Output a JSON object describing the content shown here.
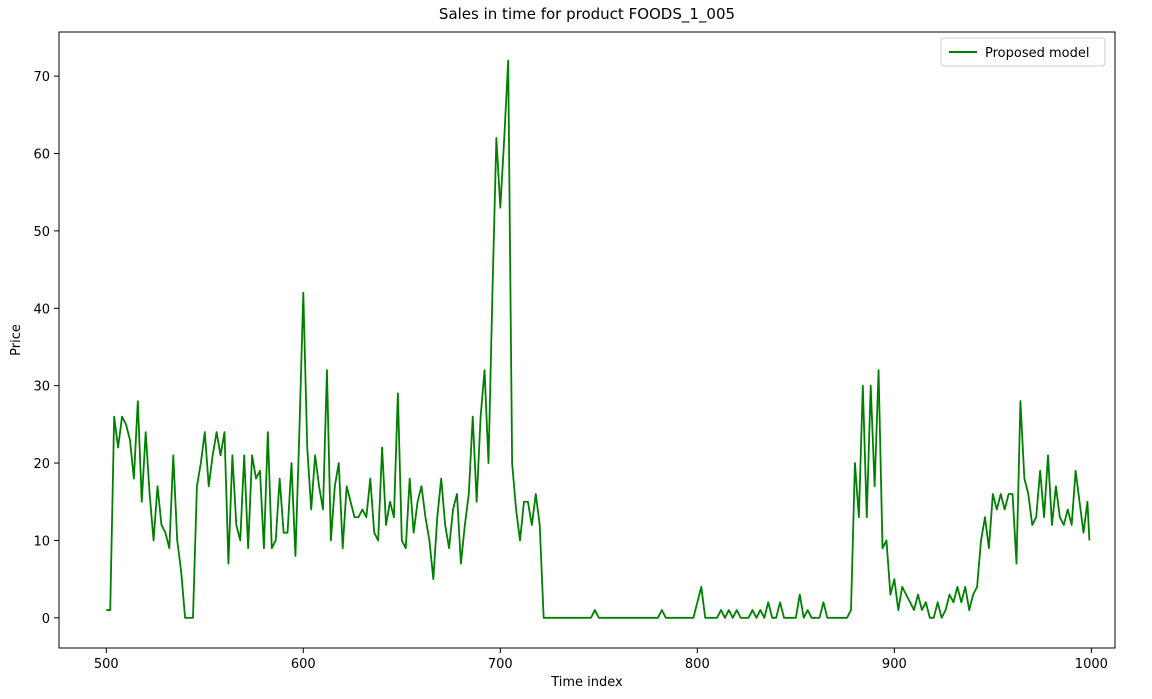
{
  "chart_data": {
    "type": "line",
    "title": "Sales in time for product FOODS_1_005",
    "x_label": "Time index",
    "y_label": "Price",
    "x": [
      500,
      502,
      504,
      506,
      508,
      510,
      512,
      514,
      516,
      518,
      520,
      522,
      524,
      526,
      528,
      530,
      532,
      534,
      536,
      538,
      540,
      542,
      544,
      546,
      548,
      550,
      552,
      554,
      556,
      558,
      560,
      562,
      564,
      566,
      568,
      570,
      572,
      574,
      576,
      578,
      580,
      582,
      584,
      586,
      588,
      590,
      592,
      594,
      596,
      598,
      600,
      602,
      604,
      606,
      608,
      610,
      612,
      614,
      616,
      618,
      620,
      622,
      624,
      626,
      628,
      630,
      632,
      634,
      636,
      638,
      640,
      642,
      644,
      646,
      648,
      650,
      652,
      654,
      656,
      658,
      660,
      662,
      664,
      666,
      668,
      670,
      672,
      674,
      676,
      678,
      680,
      682,
      684,
      686,
      688,
      690,
      692,
      694,
      696,
      698,
      700,
      702,
      704,
      706,
      708,
      710,
      712,
      714,
      716,
      718,
      720,
      722,
      724,
      726,
      728,
      730,
      732,
      734,
      736,
      738,
      740,
      742,
      744,
      746,
      748,
      750,
      752,
      754,
      756,
      758,
      760,
      762,
      764,
      766,
      768,
      770,
      772,
      774,
      776,
      778,
      780,
      782,
      784,
      786,
      788,
      790,
      792,
      794,
      796,
      798,
      800,
      802,
      804,
      806,
      808,
      810,
      812,
      814,
      816,
      818,
      820,
      822,
      824,
      826,
      828,
      830,
      832,
      834,
      836,
      838,
      840,
      842,
      844,
      846,
      848,
      850,
      852,
      854,
      856,
      858,
      860,
      862,
      864,
      866,
      868,
      870,
      872,
      874,
      876,
      878,
      880,
      882,
      884,
      886,
      888,
      890,
      892,
      894,
      896,
      898,
      900,
      902,
      904,
      906,
      908,
      910,
      912,
      914,
      916,
      918,
      920,
      922,
      924,
      926,
      928,
      930,
      932,
      934,
      936,
      938,
      940,
      942,
      944,
      946,
      948,
      950,
      952,
      954,
      956,
      958,
      960,
      962,
      964,
      966,
      968,
      970,
      972,
      974,
      976,
      978,
      980,
      982,
      984,
      986,
      988,
      990,
      992,
      994,
      996,
      998,
      999
    ],
    "series": [
      {
        "name": "Proposed model",
        "color": "#008000",
        "values": [
          1,
          1,
          26,
          22,
          26,
          25,
          23,
          18,
          28,
          15,
          24,
          16,
          10,
          17,
          12,
          11,
          9,
          21,
          10,
          6,
          0,
          0,
          0,
          17,
          20,
          24,
          17,
          21,
          24,
          21,
          24,
          7,
          21,
          12,
          10,
          21,
          9,
          21,
          18,
          19,
          9,
          24,
          9,
          10,
          18,
          11,
          11,
          20,
          8,
          24,
          42,
          22,
          14,
          21,
          17,
          14,
          32,
          10,
          17,
          20,
          9,
          17,
          15,
          13,
          13,
          14,
          13,
          18,
          11,
          10,
          22,
          12,
          15,
          13,
          29,
          10,
          9,
          18,
          11,
          15,
          17,
          13,
          10,
          5,
          13,
          18,
          12,
          9,
          14,
          16,
          7,
          12,
          16,
          26,
          15,
          26,
          32,
          20,
          42,
          62,
          53,
          62,
          72,
          20,
          14,
          10,
          15,
          15,
          12,
          16,
          12,
          0,
          0,
          0,
          0,
          0,
          0,
          0,
          0,
          0,
          0,
          0,
          0,
          0,
          1,
          0,
          0,
          0,
          0,
          0,
          0,
          0,
          0,
          0,
          0,
          0,
          0,
          0,
          0,
          0,
          0,
          1,
          0,
          0,
          0,
          0,
          0,
          0,
          0,
          0,
          2,
          4,
          0,
          0,
          0,
          0,
          1,
          0,
          1,
          0,
          1,
          0,
          0,
          0,
          1,
          0,
          1,
          0,
          2,
          0,
          0,
          2,
          0,
          0,
          0,
          0,
          3,
          0,
          1,
          0,
          0,
          0,
          2,
          0,
          0,
          0,
          0,
          0,
          0,
          1,
          20,
          13,
          30,
          13,
          30,
          17,
          32,
          9,
          10,
          3,
          5,
          1,
          4,
          3,
          2,
          1,
          3,
          1,
          2,
          0,
          0,
          2,
          0,
          1,
          3,
          2,
          4,
          2,
          4,
          1,
          3,
          4,
          10,
          13,
          9,
          16,
          14,
          16,
          14,
          16,
          16,
          7,
          28,
          18,
          16,
          12,
          13,
          19,
          13,
          21,
          12,
          17,
          13,
          12,
          14,
          12,
          19,
          15,
          11,
          15,
          10
        ]
      }
    ],
    "xlim": [
      476,
      1012
    ],
    "ylim": [
      -3.9,
      75.7
    ],
    "xticks": [
      500,
      600,
      700,
      800,
      900,
      1000
    ],
    "yticks": [
      0,
      10,
      20,
      30,
      40,
      50,
      60,
      70
    ],
    "legend": "upper right"
  }
}
